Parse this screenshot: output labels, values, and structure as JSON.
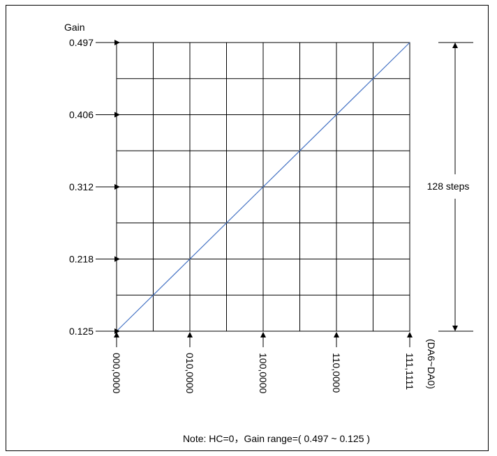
{
  "chart_data": {
    "type": "line",
    "ylabel": "Gain",
    "y_ticks": [
      "0.497",
      "0.406",
      "0.312",
      "0.218",
      "0.125"
    ],
    "x_ticks": [
      "000,0000",
      "010,0000",
      "100,0000",
      "110,0000",
      "111,1111"
    ],
    "x_axis_note": "(DA6~DA0)",
    "steps_label": "128 steps",
    "note": "Note: HC=0，Gain range=( 0.497 ~ 0.125 )",
    "ylim": [
      0.125,
      0.497
    ],
    "grid": true,
    "series": [
      {
        "color": "#4472c4",
        "points": [
          {
            "x": 0,
            "y": 0.125
          },
          {
            "x": 127,
            "y": 0.497
          }
        ]
      }
    ]
  }
}
